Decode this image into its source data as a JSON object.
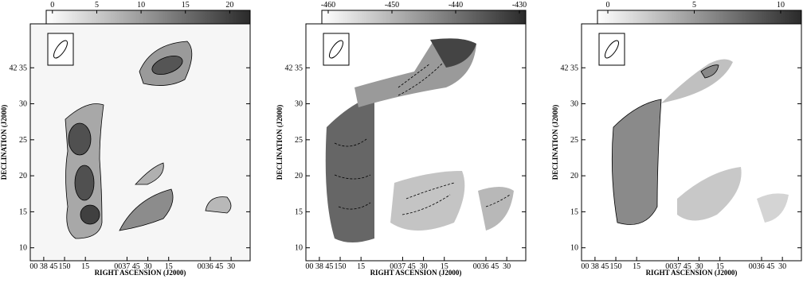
{
  "chart_data": [
    {
      "type": "image",
      "xlabel": "RIGHT ASCENSION (J2000)",
      "ylabel": "DECLINATION (J2000)",
      "xlim": [
        174.7,
        16.3
      ],
      "ylim": [
        8.2,
        41.1
      ],
      "xticks": [
        {
          "value": 165,
          "label": "00 38 45"
        },
        150,
        {
          "value": 135,
          "label": "15"
        },
        {
          "value": 105,
          "label": "0037 45"
        },
        {
          "value": 90,
          "label": "30"
        },
        {
          "value": 75,
          "label": "15"
        },
        {
          "value": 45,
          "label": "0036 45"
        },
        {
          "value": 30,
          "label": "30"
        }
      ],
      "yticks": [
        {
          "value": 35,
          "label": "42 35"
        },
        30,
        25,
        20,
        15,
        10
      ],
      "colorbar": {
        "lim": [
          -0.7,
          22.3
        ],
        "ticks": [
          0,
          5,
          10,
          15,
          20
        ],
        "colors": [
          "#ffffff",
          "#2a2a2a"
        ]
      }
    },
    {
      "type": "image",
      "xlabel": "RIGHT ASCENSION (J2000)",
      "ylabel": "DECLINATION (J2000)",
      "xlim": [
        174.7,
        16.3
      ],
      "ylim": [
        8.2,
        41.1
      ],
      "xticks": [
        {
          "value": 165,
          "label": "00 38 45"
        },
        150,
        {
          "value": 135,
          "label": "15"
        },
        {
          "value": 105,
          "label": "0037 45"
        },
        {
          "value": 90,
          "label": "30"
        },
        {
          "value": 75,
          "label": "15"
        },
        {
          "value": 45,
          "label": "0036 45"
        },
        {
          "value": 30,
          "label": "30"
        }
      ],
      "yticks": [
        {
          "value": 35,
          "label": "42 35"
        },
        30,
        25,
        20,
        15,
        10
      ],
      "colorbar": {
        "lim": [
          -461,
          -429
        ],
        "ticks": [
          -460,
          -450,
          -440,
          -430
        ],
        "colors": [
          "#ffffff",
          "#2a2a2a"
        ]
      }
    },
    {
      "type": "image",
      "xlabel": "RIGHT ASCENSION (J2000)",
      "ylabel": "DECLINATION (J2000)",
      "xlim": [
        174.7,
        16.3
      ],
      "ylim": [
        8.2,
        41.1
      ],
      "xticks": [
        {
          "value": 165,
          "label": "00 38 45"
        },
        150,
        {
          "value": 135,
          "label": "15"
        },
        {
          "value": 105,
          "label": "0037 45"
        },
        {
          "value": 90,
          "label": "30"
        },
        {
          "value": 75,
          "label": "15"
        },
        {
          "value": 45,
          "label": "0036 45"
        },
        {
          "value": 30,
          "label": "30"
        }
      ],
      "yticks": [
        {
          "value": 35,
          "label": "42 35"
        },
        30,
        25,
        20,
        15,
        10
      ],
      "colorbar": {
        "lim": [
          -0.6,
          11.2
        ],
        "ticks": [
          0,
          5,
          10
        ],
        "colors": [
          "#ffffff",
          "#2a2a2a"
        ]
      }
    }
  ]
}
